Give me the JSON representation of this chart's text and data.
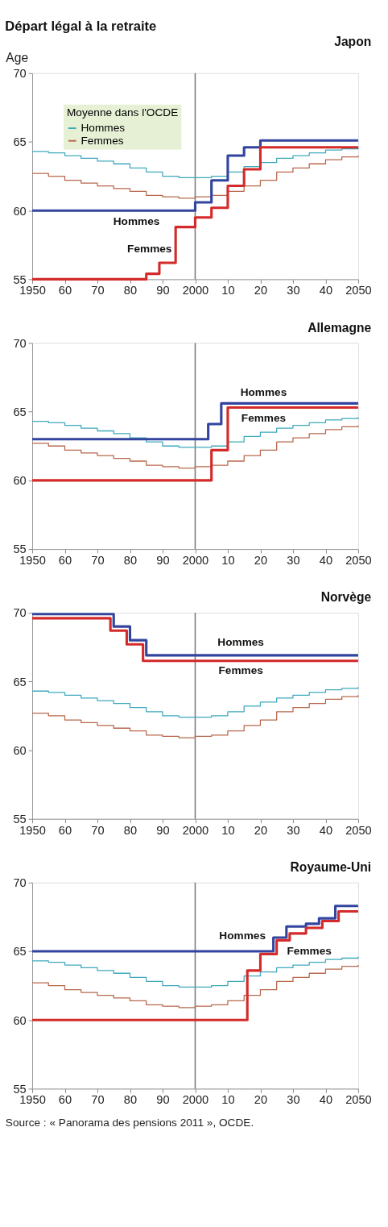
{
  "chart_data": [
    {
      "type": "step",
      "title": "Départ légal à la retraite",
      "subtitle": "Japon",
      "ylabel": "Age",
      "legend_title": "Moyenne dans l'OCDE",
      "legend": "top left",
      "grid": false,
      "xlim": [
        1950,
        2050
      ],
      "xticks": [
        1950,
        {
          "value": 1960,
          "label": "60"
        },
        {
          "value": 1970,
          "label": "70"
        },
        {
          "value": 1980,
          "label": "80"
        },
        {
          "value": 1990,
          "label": "90"
        },
        2000,
        {
          "value": 2010,
          "label": "10"
        },
        {
          "value": 2020,
          "label": "20"
        },
        {
          "value": 2030,
          "label": "30"
        },
        {
          "value": 2040,
          "label": "40"
        },
        2050
      ],
      "ylim": [
        55,
        70
      ],
      "yticks": [
        55,
        60,
        65,
        70
      ],
      "ref_lines": [
        {
          "axis": "x",
          "value": 2000,
          "color": "#7a7a7a"
        }
      ],
      "series": [
        {
          "name": "Hommes",
          "color": "#33449e",
          "x": [
            1950,
            2000,
            2005,
            2010,
            2015,
            2020,
            2050
          ],
          "values": [
            60,
            60.6,
            62.2,
            64.0,
            64.6,
            65.1,
            65.1
          ]
        },
        {
          "name": "Femmes",
          "color": "#d42a2a",
          "x": [
            1950,
            1985,
            1989,
            1994,
            2000,
            2005,
            2010,
            2015,
            2020,
            2050
          ],
          "values": [
            55,
            55.4,
            56.2,
            58.8,
            59.5,
            60.2,
            61.8,
            63.0,
            64.6,
            64.6
          ]
        },
        {
          "name": "Hommes",
          "color": "#3fa9bd",
          "x": [
            1950,
            1955,
            1960,
            1965,
            1970,
            1975,
            1980,
            1985,
            1990,
            1995,
            2000,
            2005,
            2010,
            2015,
            2020,
            2025,
            2030,
            2035,
            2040,
            2045,
            2050
          ],
          "values": [
            64.3,
            64.2,
            64.0,
            63.8,
            63.6,
            63.4,
            63.1,
            62.8,
            62.5,
            62.4,
            62.4,
            62.5,
            62.8,
            63.2,
            63.5,
            63.8,
            64.0,
            64.2,
            64.4,
            64.5,
            64.6
          ]
        },
        {
          "name": "Femmes",
          "color": "#b8684c",
          "x": [
            1950,
            1955,
            1960,
            1965,
            1970,
            1975,
            1980,
            1985,
            1990,
            1995,
            2000,
            2005,
            2010,
            2015,
            2020,
            2025,
            2030,
            2035,
            2040,
            2045,
            2050
          ],
          "values": [
            62.7,
            62.5,
            62.2,
            62.0,
            61.8,
            61.6,
            61.4,
            61.1,
            61.0,
            60.9,
            61.0,
            61.1,
            61.4,
            61.8,
            62.2,
            62.8,
            63.1,
            63.4,
            63.7,
            63.9,
            64.0
          ]
        }
      ]
    },
    {
      "type": "step",
      "title": "Allemagne",
      "grid": false,
      "xlim": [
        1950,
        2050
      ],
      "xticks": [
        1950,
        {
          "value": 1960,
          "label": "60"
        },
        {
          "value": 1970,
          "label": "70"
        },
        {
          "value": 1980,
          "label": "80"
        },
        {
          "value": 1990,
          "label": "90"
        },
        2000,
        {
          "value": 2010,
          "label": "10"
        },
        {
          "value": 2020,
          "label": "20"
        },
        {
          "value": 2030,
          "label": "30"
        },
        {
          "value": 2040,
          "label": "40"
        },
        2050
      ],
      "ylim": [
        55,
        70
      ],
      "yticks": [
        55,
        60,
        65,
        70
      ],
      "ref_lines": [
        {
          "axis": "x",
          "value": 2000,
          "color": "#7a7a7a"
        }
      ],
      "series": [
        {
          "name": "Hommes",
          "color": "#33449e",
          "x": [
            1950,
            2004,
            2008,
            2050
          ],
          "values": [
            63,
            64.1,
            65.6,
            65.6
          ]
        },
        {
          "name": "Femmes",
          "color": "#d42a2a",
          "x": [
            1950,
            2005,
            2010,
            2050
          ],
          "values": [
            60,
            62.2,
            65.3,
            65.3
          ]
        },
        {
          "color": "#3fa9bd",
          "x": [
            1950,
            1955,
            1960,
            1965,
            1970,
            1975,
            1980,
            1985,
            1990,
            1995,
            2000,
            2005,
            2010,
            2015,
            2020,
            2025,
            2030,
            2035,
            2040,
            2045,
            2050
          ],
          "values": [
            64.3,
            64.2,
            64.0,
            63.8,
            63.6,
            63.4,
            63.1,
            62.8,
            62.5,
            62.4,
            62.4,
            62.5,
            62.8,
            63.2,
            63.5,
            63.8,
            64.0,
            64.2,
            64.4,
            64.5,
            64.6
          ]
        },
        {
          "color": "#b8684c",
          "x": [
            1950,
            1955,
            1960,
            1965,
            1970,
            1975,
            1980,
            1985,
            1990,
            1995,
            2000,
            2005,
            2010,
            2015,
            2020,
            2025,
            2030,
            2035,
            2040,
            2045,
            2050
          ],
          "values": [
            62.7,
            62.5,
            62.2,
            62.0,
            61.8,
            61.6,
            61.4,
            61.1,
            61.0,
            60.9,
            61.0,
            61.1,
            61.4,
            61.8,
            62.2,
            62.8,
            63.1,
            63.4,
            63.7,
            63.9,
            64.0
          ]
        }
      ]
    },
    {
      "type": "step",
      "title": "Norvège",
      "grid": false,
      "xlim": [
        1950,
        2050
      ],
      "xticks": [
        1950,
        {
          "value": 1960,
          "label": "60"
        },
        {
          "value": 1970,
          "label": "70"
        },
        {
          "value": 1980,
          "label": "80"
        },
        {
          "value": 1990,
          "label": "90"
        },
        2000,
        {
          "value": 2010,
          "label": "10"
        },
        {
          "value": 2020,
          "label": "20"
        },
        {
          "value": 2030,
          "label": "30"
        },
        {
          "value": 2040,
          "label": "40"
        },
        2050
      ],
      "ylim": [
        55,
        70
      ],
      "yticks": [
        55,
        60,
        65,
        70
      ],
      "ref_lines": [
        {
          "axis": "x",
          "value": 2000,
          "color": "#7a7a7a"
        }
      ],
      "series": [
        {
          "name": "Hommes",
          "color": "#33449e",
          "x": [
            1950,
            1975,
            1980,
            1985,
            2050
          ],
          "values": [
            69.9,
            69.0,
            68.0,
            66.9,
            66.9
          ]
        },
        {
          "name": "Femmes",
          "color": "#d42a2a",
          "x": [
            1950,
            1974,
            1979,
            1984,
            2050
          ],
          "values": [
            69.6,
            68.7,
            67.7,
            66.5,
            66.5
          ]
        },
        {
          "color": "#3fa9bd",
          "x": [
            1950,
            1955,
            1960,
            1965,
            1970,
            1975,
            1980,
            1985,
            1990,
            1995,
            2000,
            2005,
            2010,
            2015,
            2020,
            2025,
            2030,
            2035,
            2040,
            2045,
            2050
          ],
          "values": [
            64.3,
            64.2,
            64.0,
            63.8,
            63.6,
            63.4,
            63.1,
            62.8,
            62.5,
            62.4,
            62.4,
            62.5,
            62.8,
            63.2,
            63.5,
            63.8,
            64.0,
            64.2,
            64.4,
            64.5,
            64.6
          ]
        },
        {
          "color": "#b8684c",
          "x": [
            1950,
            1955,
            1960,
            1965,
            1970,
            1975,
            1980,
            1985,
            1990,
            1995,
            2000,
            2005,
            2010,
            2015,
            2020,
            2025,
            2030,
            2035,
            2040,
            2045,
            2050
          ],
          "values": [
            62.7,
            62.5,
            62.2,
            62.0,
            61.8,
            61.6,
            61.4,
            61.1,
            61.0,
            60.9,
            61.0,
            61.1,
            61.4,
            61.8,
            62.2,
            62.8,
            63.1,
            63.4,
            63.7,
            63.9,
            64.0
          ]
        }
      ]
    },
    {
      "type": "step",
      "title": "Royaume-Uni",
      "grid": false,
      "xlim": [
        1950,
        2050
      ],
      "xticks": [
        1950,
        {
          "value": 1960,
          "label": "60"
        },
        {
          "value": 1970,
          "label": "70"
        },
        {
          "value": 1980,
          "label": "80"
        },
        {
          "value": 1990,
          "label": "90"
        },
        2000,
        {
          "value": 2010,
          "label": "10"
        },
        {
          "value": 2020,
          "label": "20"
        },
        {
          "value": 2030,
          "label": "30"
        },
        {
          "value": 2040,
          "label": "40"
        },
        2050
      ],
      "ylim": [
        55,
        70
      ],
      "yticks": [
        55,
        60,
        65,
        70
      ],
      "ref_lines": [
        {
          "axis": "x",
          "value": 2000,
          "color": "#7a7a7a"
        }
      ],
      "series": [
        {
          "name": "Hommes",
          "color": "#33449e",
          "x": [
            1950,
            2024,
            2028,
            2034,
            2038,
            2043,
            2050
          ],
          "values": [
            65,
            66.0,
            66.8,
            67.0,
            67.4,
            68.3,
            68.3
          ]
        },
        {
          "name": "Femmes",
          "color": "#d42a2a",
          "x": [
            1950,
            2016,
            2020,
            2025,
            2029,
            2034,
            2039,
            2044,
            2050
          ],
          "values": [
            60,
            63.6,
            64.8,
            65.8,
            66.3,
            66.7,
            67.2,
            67.9,
            67.9
          ]
        },
        {
          "color": "#3fa9bd",
          "x": [
            1950,
            1955,
            1960,
            1965,
            1970,
            1975,
            1980,
            1985,
            1990,
            1995,
            2000,
            2005,
            2010,
            2015,
            2020,
            2025,
            2030,
            2035,
            2040,
            2045,
            2050
          ],
          "values": [
            64.3,
            64.2,
            64.0,
            63.8,
            63.6,
            63.4,
            63.1,
            62.8,
            62.5,
            62.4,
            62.4,
            62.5,
            62.8,
            63.2,
            63.5,
            63.8,
            64.0,
            64.2,
            64.4,
            64.5,
            64.6
          ]
        },
        {
          "color": "#b8684c",
          "x": [
            1950,
            1955,
            1960,
            1965,
            1970,
            1975,
            1980,
            1985,
            1990,
            1995,
            2000,
            2005,
            2010,
            2015,
            2020,
            2025,
            2030,
            2035,
            2040,
            2045,
            2050
          ],
          "values": [
            62.7,
            62.5,
            62.2,
            62.0,
            61.8,
            61.6,
            61.4,
            61.1,
            61.0,
            60.9,
            61.0,
            61.1,
            61.4,
            61.8,
            62.2,
            62.8,
            63.1,
            63.4,
            63.7,
            63.9,
            64.0
          ]
        }
      ],
      "annotations": [
        "Source : « Panorama des pensions 2011 », OCDE."
      ]
    }
  ]
}
